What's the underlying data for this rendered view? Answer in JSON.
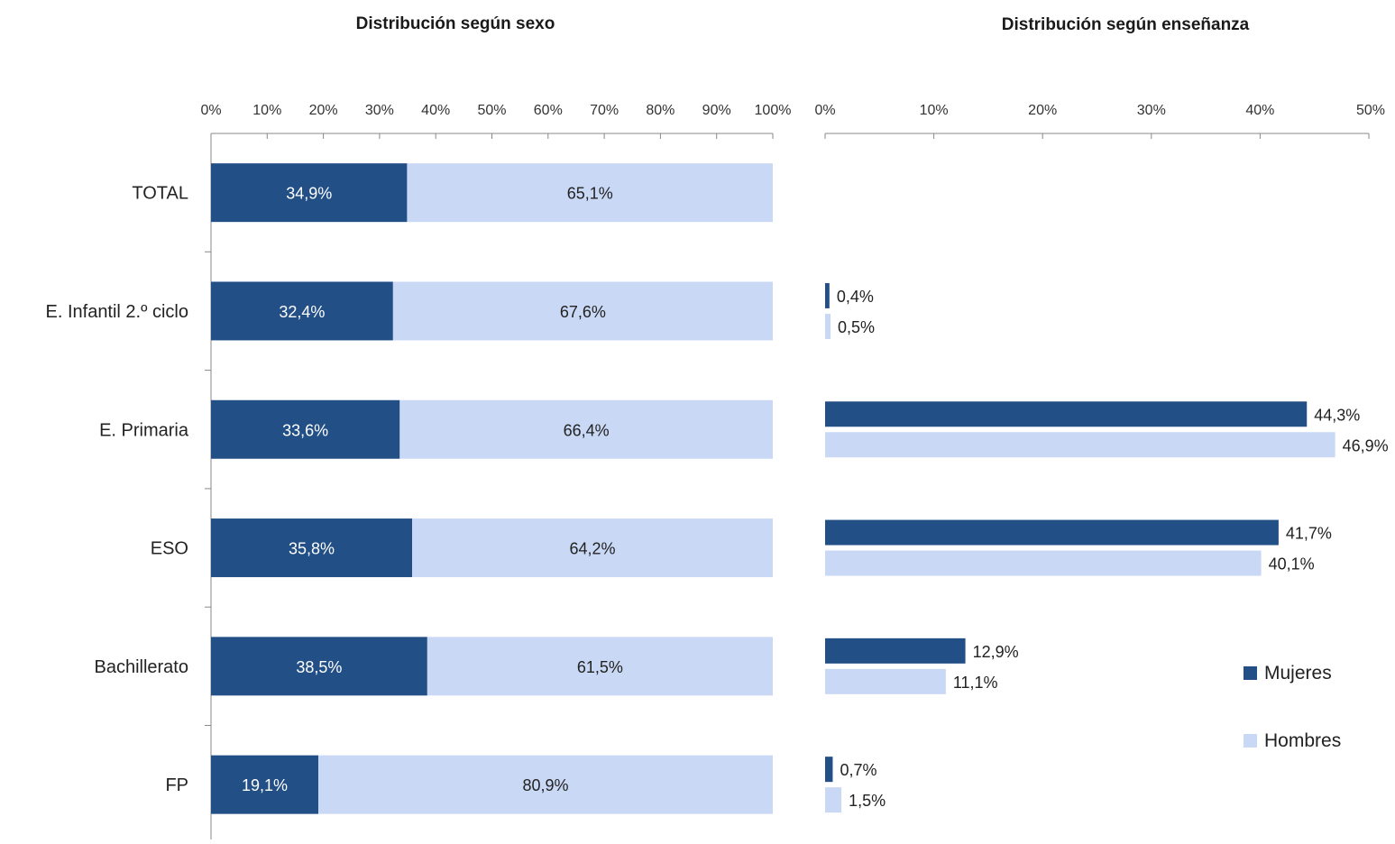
{
  "colors": {
    "mujeres": "#234f87",
    "hombres": "#c9d8f5",
    "axis": "#888888"
  },
  "categories": [
    "TOTAL",
    "E. Infantil 2.º ciclo",
    "E. Primaria",
    "ESO",
    "Bachillerato",
    "FP"
  ],
  "legend": {
    "mujeres": "Mujeres",
    "hombres": "Hombres"
  },
  "chart_data": [
    {
      "type": "bar",
      "orientation": "horizontal",
      "stacked": true,
      "title": "Distribución según sexo",
      "categories": [
        "TOTAL",
        "E. Infantil 2.º ciclo",
        "E. Primaria",
        "ESO",
        "Bachillerato",
        "FP"
      ],
      "series": [
        {
          "name": "Mujeres",
          "values": [
            34.9,
            32.4,
            33.6,
            35.8,
            38.5,
            19.1
          ],
          "labels": [
            "34,9%",
            "32,4%",
            "33,6%",
            "35,8%",
            "38,5%",
            "19,1%"
          ]
        },
        {
          "name": "Hombres",
          "values": [
            65.1,
            67.6,
            66.4,
            64.2,
            61.5,
            80.9
          ],
          "labels": [
            "65,1%",
            "67,6%",
            "66,4%",
            "64,2%",
            "61,5%",
            "80,9%"
          ]
        }
      ],
      "xlim": [
        0,
        100
      ],
      "ticks": [
        "0%",
        "10%",
        "20%",
        "30%",
        "40%",
        "50%",
        "60%",
        "70%",
        "80%",
        "90%",
        "100%"
      ],
      "axis_position": "top",
      "grid": false
    },
    {
      "type": "bar",
      "orientation": "horizontal",
      "stacked": false,
      "title": "Distribución según enseñanza",
      "categories": [
        "E. Infantil 2.º ciclo",
        "E. Primaria",
        "ESO",
        "Bachillerato",
        "FP"
      ],
      "series": [
        {
          "name": "Mujeres",
          "values": [
            0.4,
            44.3,
            41.7,
            12.9,
            0.7
          ],
          "labels": [
            "0,4%",
            "44,3%",
            "41,7%",
            "12,9%",
            "0,7%"
          ]
        },
        {
          "name": "Hombres",
          "values": [
            0.5,
            46.9,
            40.1,
            11.1,
            1.5
          ],
          "labels": [
            "0,5%",
            "46,9%",
            "40,1%",
            "11,1%",
            "1,5%"
          ]
        }
      ],
      "xlim": [
        0,
        50
      ],
      "ticks": [
        "0%",
        "10%",
        "20%",
        "30%",
        "40%",
        "50%"
      ],
      "axis_position": "top",
      "grid": false,
      "legend_position": "bottom-right"
    }
  ]
}
